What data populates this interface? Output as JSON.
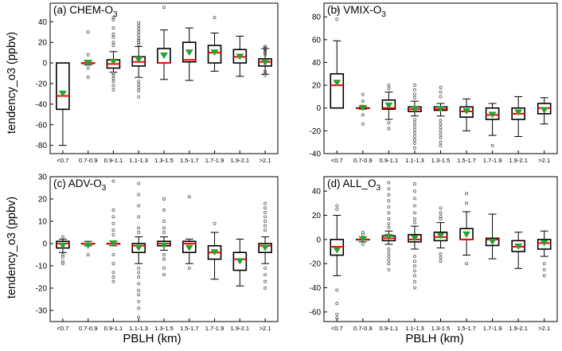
{
  "figure": {
    "ylabel": "tendency_o3 (ppbv)",
    "xlabel": "PBLH (km)"
  },
  "colors": {
    "median": "#ff0000",
    "mean_marker": "#2ca02c",
    "box": "#000000",
    "outlier": "#444444"
  },
  "chart_data": [
    {
      "type": "box",
      "title": "(a) CHEM-O3",
      "title_main": "(a) CHEM-O",
      "title_sub": "3",
      "ylim": [
        -88,
        58
      ],
      "yticks": [
        -80,
        -60,
        -40,
        -20,
        0,
        20,
        40
      ],
      "categories": [
        "<0.7",
        "0.7-0.9",
        "0.9-1.1",
        "1.1-1.3",
        "1.3-1.5",
        "1.5-1.7",
        "1.7-1.9",
        "1.9-2.1",
        ">2.1"
      ],
      "boxes": [
        {
          "q1": -45,
          "median": -32,
          "q3": 0,
          "wlo": -80,
          "whi": 0,
          "mean": -30,
          "outliers": []
        },
        {
          "q1": 0,
          "median": 0,
          "q3": 0,
          "wlo": -2,
          "whi": 2,
          "mean": 0,
          "outliers": [
            30,
            8,
            -5,
            -14
          ]
        },
        {
          "q1": -5,
          "median": -1,
          "q3": 3,
          "wlo": -9,
          "whi": 11,
          "mean": 1,
          "outliers": [
            44,
            42,
            34,
            28,
            25,
            20,
            17,
            -10,
            -12,
            -15,
            -18,
            -22,
            -26
          ]
        },
        {
          "q1": -3,
          "median": 1,
          "q3": 6,
          "wlo": -14,
          "whi": 16,
          "mean": 3,
          "outliers": [
            39,
            36,
            33,
            30,
            27,
            24,
            22,
            20,
            18,
            -18,
            -21,
            -24,
            -27,
            -33
          ]
        },
        {
          "q1": 0,
          "median": 0,
          "q3": 14,
          "wlo": -16,
          "whi": 32,
          "mean": 7,
          "outliers": [
            54
          ]
        },
        {
          "q1": 1,
          "median": 3,
          "q3": 20,
          "wlo": -17,
          "whi": 34,
          "mean": 10,
          "outliers": []
        },
        {
          "q1": 0,
          "median": 10,
          "q3": 17,
          "wlo": -8,
          "whi": 29,
          "mean": 10,
          "outliers": [
            44
          ]
        },
        {
          "q1": 0,
          "median": 6,
          "q3": 13,
          "wlo": -13,
          "whi": 26,
          "mean": 6,
          "outliers": []
        },
        {
          "q1": -3,
          "median": 1,
          "q3": 4,
          "wlo": -11,
          "whi": 14,
          "mean": 0,
          "outliers": [
            16,
            15,
            14,
            13,
            12,
            10,
            8,
            -8,
            -10,
            -12
          ]
        }
      ]
    },
    {
      "type": "box",
      "title": "(b) VMIX-O3",
      "title_main": "(b) VMIX-O",
      "title_sub": "3",
      "ylim": [
        -40,
        92
      ],
      "yticks": [
        -40,
        -20,
        0,
        20,
        40,
        60,
        80
      ],
      "categories": [
        "<0.7",
        "0.7-0.9",
        "0.9-1.1",
        "1.1-1.3",
        "1.3-1.5",
        "1.5-1.7",
        "1.7-1.9",
        "1.9-2.1",
        ">2.1"
      ],
      "boxes": [
        {
          "q1": 0,
          "median": 20,
          "q3": 30,
          "wlo": 0,
          "whi": 59,
          "mean": 22,
          "outliers": [
            86,
            78
          ]
        },
        {
          "q1": 0,
          "median": 0,
          "q3": 0,
          "wlo": -1,
          "whi": 1,
          "mean": 0,
          "outliers": [
            12,
            6,
            -6,
            -14
          ]
        },
        {
          "q1": -1,
          "median": 0,
          "q3": 7,
          "wlo": -10,
          "whi": 14,
          "mean": 2,
          "outliers": [
            20,
            17,
            -13,
            -18
          ]
        },
        {
          "q1": -3,
          "median": -1,
          "q3": 1,
          "wlo": -7,
          "whi": 6,
          "mean": -1,
          "outliers": [
            20,
            16,
            12,
            9,
            -10,
            -13,
            -16,
            -19,
            -22,
            -25,
            -28,
            -31,
            -35
          ]
        },
        {
          "q1": -2,
          "median": -1,
          "q3": 1,
          "wlo": -7,
          "whi": 4,
          "mean": -1,
          "outliers": [
            18,
            14,
            10,
            -11,
            -14,
            -17,
            -20,
            -23,
            -26,
            -30,
            -33
          ]
        },
        {
          "q1": -8,
          "median": -3,
          "q3": 1,
          "wlo": -20,
          "whi": 8,
          "mean": -3,
          "outliers": []
        },
        {
          "q1": -10,
          "median": -6,
          "q3": 0,
          "wlo": -24,
          "whi": 4,
          "mean": -6,
          "outliers": [
            -33
          ]
        },
        {
          "q1": -10,
          "median": -5,
          "q3": 0,
          "wlo": -25,
          "whi": 10,
          "mean": -4,
          "outliers": []
        },
        {
          "q1": -5,
          "median": 0,
          "q3": 4,
          "wlo": -14,
          "whi": 9,
          "mean": -2,
          "outliers": []
        }
      ]
    },
    {
      "type": "box",
      "title": "(c) ADV-O3",
      "title_main": "(c) ADV-O",
      "title_sub": "3",
      "ylim": [
        -35,
        30
      ],
      "yticks": [
        -30,
        -20,
        -10,
        0,
        10,
        20,
        30
      ],
      "categories": [
        "<0.7",
        "0.7-0.9",
        "0.9-1.1",
        "1.1-1.3",
        "1.3-1.5",
        "1.5-1.7",
        "1.7-1.9",
        "1.9-2.1",
        ">2.1"
      ],
      "boxes": [
        {
          "q1": -2,
          "median": 0,
          "q3": 1,
          "wlo": -4,
          "whi": 2,
          "mean": -1,
          "outliers": [
            3,
            -5,
            -6,
            -8,
            -9
          ]
        },
        {
          "q1": 0,
          "median": 0,
          "q3": 0,
          "wlo": -1,
          "whi": 1,
          "mean": -1,
          "outliers": [
            -5
          ]
        },
        {
          "q1": 0,
          "median": 0,
          "q3": 0,
          "wlo": -1,
          "whi": 1,
          "mean": 0,
          "outliers": [
            28,
            15,
            12,
            9,
            6,
            4,
            -5,
            -9,
            -13,
            -15,
            -17
          ]
        },
        {
          "q1": -4,
          "median": -1,
          "q3": 0,
          "wlo": -9,
          "whi": 3,
          "mean": -2,
          "outliers": [
            27,
            22,
            17,
            12,
            7,
            5,
            -11,
            -13,
            -15,
            -18,
            -21,
            -23,
            -26,
            -29,
            -33
          ]
        },
        {
          "q1": -1,
          "median": 0,
          "q3": 1,
          "wlo": -3,
          "whi": 3,
          "mean": -1,
          "outliers": [
            20,
            15,
            10,
            7,
            5,
            -5,
            -7,
            -11,
            -14
          ]
        },
        {
          "q1": -4,
          "median": 0,
          "q3": 1,
          "wlo": -9,
          "whi": 2,
          "mean": -2,
          "outliers": [
            21,
            -11
          ]
        },
        {
          "q1": -7,
          "median": -4,
          "q3": -1,
          "wlo": -16,
          "whi": 5,
          "mean": -4,
          "outliers": [
            9
          ]
        },
        {
          "q1": -12,
          "median": -7,
          "q3": -4,
          "wlo": -19,
          "whi": 2,
          "mean": -8,
          "outliers": []
        },
        {
          "q1": -4,
          "median": -1,
          "q3": 0,
          "wlo": -9,
          "whi": 3,
          "mean": -2,
          "outliers": [
            18,
            16,
            14,
            12,
            10,
            8,
            6,
            -11,
            -14,
            -17,
            -20
          ]
        }
      ]
    },
    {
      "type": "box",
      "title": "(d) ALL_O3",
      "title_main": "(d) ALL_O",
      "title_sub": "3",
      "ylim": [
        -68,
        52
      ],
      "yticks": [
        -60,
        -40,
        -20,
        0,
        20,
        40
      ],
      "categories": [
        "<0.7",
        "0.7-0.9",
        "0.9-1.1",
        "1.1-1.3",
        "1.3-1.5",
        "1.5-1.7",
        "1.7-1.9",
        "1.9-2.1",
        ">2.1"
      ],
      "boxes": [
        {
          "q1": -13,
          "median": -6,
          "q3": 0,
          "wlo": -30,
          "whi": 20,
          "mean": -9,
          "outliers": [
            28,
            25,
            -42,
            -53,
            -62,
            -65
          ]
        },
        {
          "q1": 0,
          "median": 0,
          "q3": 0,
          "wlo": -2,
          "whi": 2,
          "mean": 0,
          "outliers": [
            6,
            4,
            -4
          ]
        },
        {
          "q1": -1,
          "median": 1,
          "q3": 3,
          "wlo": -4,
          "whi": 7,
          "mean": 2,
          "outliers": [
            47,
            42,
            37,
            32,
            27,
            22,
            17,
            13,
            10,
            -8,
            -11,
            -14,
            -17,
            -20,
            -25
          ]
        },
        {
          "q1": -2,
          "median": 0,
          "q3": 4,
          "wlo": -8,
          "whi": 11,
          "mean": 1,
          "outliers": [
            46,
            40,
            34,
            28,
            22,
            17,
            14,
            -14,
            -18,
            -22,
            -26,
            -30,
            -35,
            -40
          ]
        },
        {
          "q1": -1,
          "median": 2,
          "q3": 6,
          "wlo": -7,
          "whi": 14,
          "mean": 3,
          "outliers": [
            26,
            22,
            19,
            17,
            -12,
            -15,
            -18
          ]
        },
        {
          "q1": 0,
          "median": 0,
          "q3": 9,
          "wlo": -13,
          "whi": 23,
          "mean": 4,
          "outliers": [
            38,
            30,
            -20
          ]
        },
        {
          "q1": -5,
          "median": 0,
          "q3": 1,
          "wlo": -16,
          "whi": 21,
          "mean": -2,
          "outliers": []
        },
        {
          "q1": -10,
          "median": -6,
          "q3": -1,
          "wlo": -24,
          "whi": 6,
          "mean": -6,
          "outliers": []
        },
        {
          "q1": -8,
          "median": -3,
          "q3": 0,
          "wlo": -14,
          "whi": 7,
          "mean": -3,
          "outliers": [
            -20,
            -25,
            -30
          ]
        }
      ]
    }
  ]
}
